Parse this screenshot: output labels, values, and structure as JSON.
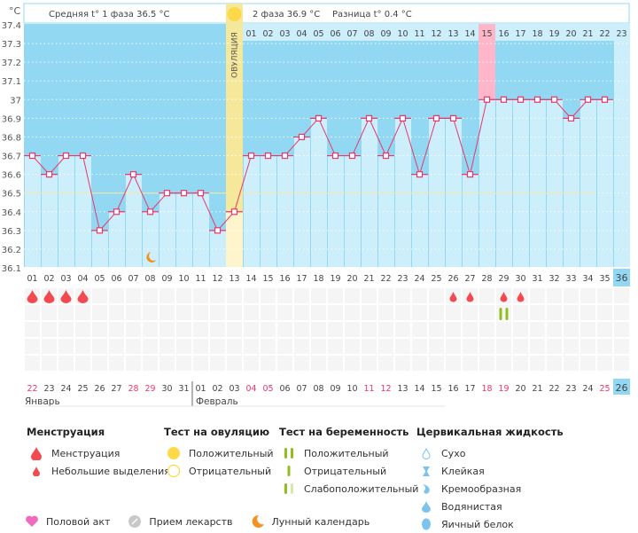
{
  "chart_data": {
    "type": "line",
    "title": "",
    "ylabel": "°C",
    "ylim": [
      36.1,
      37.4
    ],
    "yticks": [
      "37.4",
      "37.3",
      "37.2",
      "37.1",
      "37",
      "36.9",
      "36.8",
      "36.7",
      "36.6",
      "36.5",
      "36.4",
      "36.3",
      "36.2",
      "36.1"
    ],
    "cycle_days": [
      "01",
      "02",
      "03",
      "04",
      "05",
      "06",
      "07",
      "08",
      "09",
      "10",
      "11",
      "12",
      "13",
      "14",
      "15",
      "16",
      "17",
      "18",
      "19",
      "20",
      "21",
      "22",
      "23",
      "24",
      "25",
      "26",
      "27",
      "28",
      "29",
      "30",
      "31",
      "32",
      "33",
      "34",
      "35",
      "36"
    ],
    "temperatures": [
      36.7,
      36.6,
      36.7,
      36.7,
      36.3,
      36.4,
      36.6,
      36.4,
      36.5,
      36.5,
      36.5,
      36.3,
      36.4,
      36.7,
      36.7,
      36.7,
      36.8,
      36.9,
      36.7,
      36.7,
      36.9,
      36.7,
      36.9,
      36.6,
      36.9,
      36.9,
      36.6,
      37.0,
      37.0,
      37.0,
      37.0,
      37.0,
      36.9,
      37.0,
      37.0,
      null
    ],
    "phase2_day_labels": [
      "01",
      "02",
      "03",
      "04",
      "05",
      "06",
      "07",
      "08",
      "09",
      "10",
      "11",
      "12",
      "13",
      "14",
      "15",
      "16",
      "17",
      "18",
      "19",
      "20",
      "21",
      "22",
      "23"
    ],
    "phase1_avg_line": 36.5,
    "ovulation_day": 13,
    "ovulation_label": "ОВУЛЯЦИЯ",
    "highlight_phase2_day": "15",
    "current_day": "36",
    "calendar_dates": [
      "22",
      "23",
      "24",
      "25",
      "26",
      "27",
      "28",
      "29",
      "30",
      "31",
      "01",
      "02",
      "03",
      "04",
      "05",
      "06",
      "07",
      "08",
      "09",
      "10",
      "11",
      "12",
      "13",
      "14",
      "15",
      "16",
      "17",
      "18",
      "19",
      "20",
      "21",
      "22",
      "23",
      "24",
      "25",
      "26"
    ],
    "weekend_indices": [
      0,
      6,
      7,
      13,
      14,
      20,
      21,
      27,
      28,
      34
    ],
    "months": [
      "Январь",
      "Февраль"
    ],
    "menstruation_days": [
      1,
      2,
      3,
      4
    ],
    "spotting_days": [
      26,
      27,
      29,
      30
    ],
    "pregnancy_test_positive_day": 29,
    "moon_day": 8
  },
  "header": {
    "phase1": "Средняя t° 1 фаза",
    "phase1_value": "36.5 °C",
    "phase2": "2 фаза",
    "phase2_value": "36.9 °C",
    "diff": "Разница t°",
    "diff_value": "0.4 °C"
  },
  "legend": {
    "menstruation": {
      "title": "Менструация",
      "items": [
        "Менструация",
        "Небольшие выделения"
      ]
    },
    "ovulation_test": {
      "title": "Тест на овуляцию",
      "items": [
        "Положительный",
        "Отрицательный"
      ]
    },
    "pregnancy_test": {
      "title": "Тест на беременность",
      "items": [
        "Положительный",
        "Отрицательный",
        "Слабоположительный"
      ]
    },
    "cervical_fluid": {
      "title": "Цервикальная жидкость",
      "items": [
        "Сухо",
        "Клейкая",
        "Кремообразная",
        "Водянистая",
        "Яичный белок"
      ]
    },
    "bottom": [
      "Половой акт",
      "Прием лекарств",
      "Лунный календарь"
    ]
  },
  "colors": {
    "bg_top": "#92d8f2",
    "bar": "#cdeefb",
    "line": "#e8376a",
    "ovulation": "#f6e89a",
    "highlight": "#ffb6c8",
    "weekend": "#e8376a"
  }
}
